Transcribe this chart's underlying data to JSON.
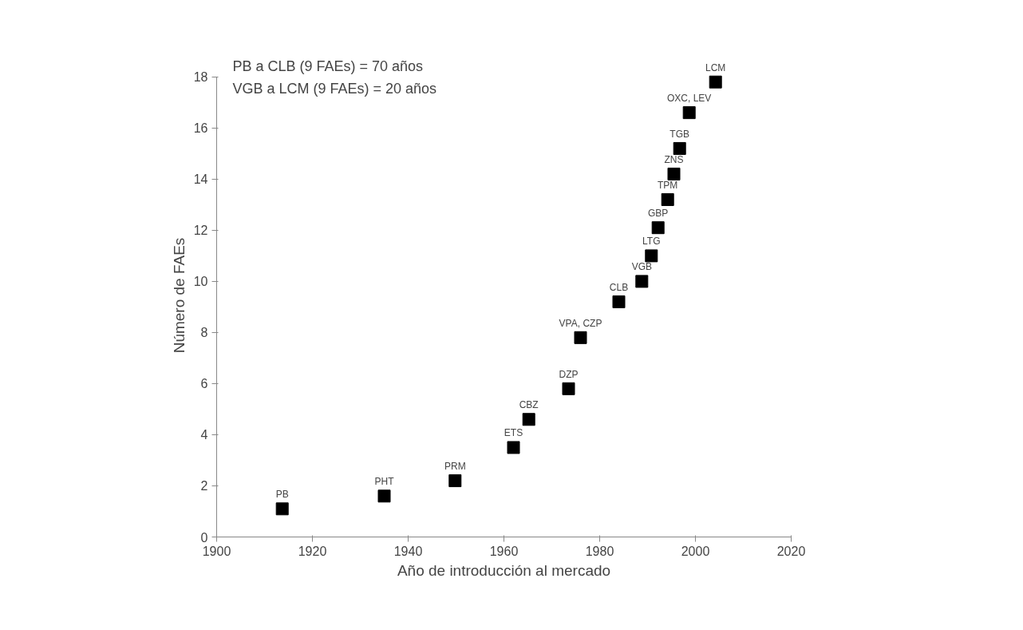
{
  "chart_data": {
    "type": "scatter",
    "xlabel": "Año de introducción al mercado",
    "ylabel": "Número de FAEs",
    "x": [
      1913.7,
      1935,
      1949.8,
      1962,
      1965.2,
      1973.5,
      1976,
      1984,
      1988.8,
      1990.8,
      1992.2,
      1994.2,
      1995.5,
      1996.7,
      1998.7,
      2004.2
    ],
    "values": [
      1.1,
      1.6,
      2.2,
      3.5,
      4.6,
      5.8,
      7.8,
      9.2,
      10,
      11,
      12.1,
      13.2,
      14.2,
      15.2,
      16.6,
      17.8
    ],
    "color": "#000000",
    "marker": "square",
    "grid": false,
    "xlim": [
      1900,
      2020
    ],
    "ylim": [
      0,
      18
    ],
    "xticks": [
      1900,
      1920,
      1940,
      1960,
      1980,
      2000,
      2020
    ],
    "yticks": [
      0,
      2,
      4,
      6,
      8,
      10,
      12,
      14,
      16,
      18
    ],
    "annotations": [
      "PB a CLB (9 FAEs) = 70 años",
      "VGB a LCM (9 FAEs) = 20 años",
      {
        "text": "PB",
        "x": 1913.7,
        "y": 1.1
      },
      {
        "text": "PHT",
        "x": 1935,
        "y": 1.6
      },
      {
        "text": "PRM",
        "x": 1949.8,
        "y": 2.2
      },
      {
        "text": "ETS",
        "x": 1962,
        "y": 3.5
      },
      {
        "text": "CBZ",
        "x": 1965.2,
        "y": 4.6
      },
      {
        "text": "DZP",
        "x": 1973.5,
        "y": 5.8
      },
      {
        "text": "VPA, CZP",
        "x": 1976,
        "y": 7.8
      },
      {
        "text": "CLB",
        "x": 1984,
        "y": 9.2
      },
      {
        "text": "VGB",
        "x": 1988.8,
        "y": 10
      },
      {
        "text": "LTG",
        "x": 1990.8,
        "y": 11
      },
      {
        "text": "GBP",
        "x": 1992.2,
        "y": 12.1
      },
      {
        "text": "TPM",
        "x": 1994.2,
        "y": 13.2
      },
      {
        "text": "ZNS",
        "x": 1995.5,
        "y": 14.2
      },
      {
        "text": "TGB",
        "x": 1996.7,
        "y": 15.2
      },
      {
        "text": "OXC, LEV",
        "x": 1998.7,
        "y": 16.6
      },
      {
        "text": "LCM",
        "x": 2004.2,
        "y": 17.8
      }
    ]
  }
}
